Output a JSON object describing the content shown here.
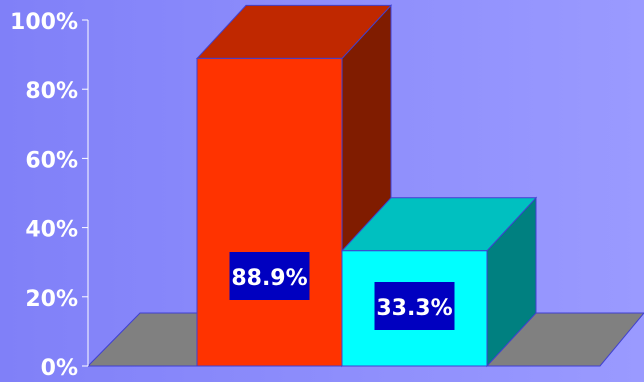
{
  "chart_data": {
    "type": "bar",
    "style": "3d",
    "categories": [
      "",
      ""
    ],
    "values": [
      88.9,
      33.3
    ],
    "data_labels": [
      "88.9%",
      "33.3%"
    ],
    "yticks": [
      "0%",
      "20%",
      "40%",
      "60%",
      "80%",
      "100%"
    ],
    "ylim": [
      0,
      100
    ],
    "y_unit": "%",
    "grid": false,
    "legend": "none",
    "title": "",
    "xlabel": "",
    "ylabel": "",
    "colors": {
      "background": "#8c8cf8",
      "floor": "#808080",
      "axis": "#ffffff",
      "label_box": "#0000c0",
      "bars": [
        {
          "front": "#ff3300",
          "top": "#c02800",
          "side": "#801c00"
        },
        {
          "front": "#00ffff",
          "top": "#00c0c0",
          "side": "#008080"
        }
      ]
    }
  }
}
